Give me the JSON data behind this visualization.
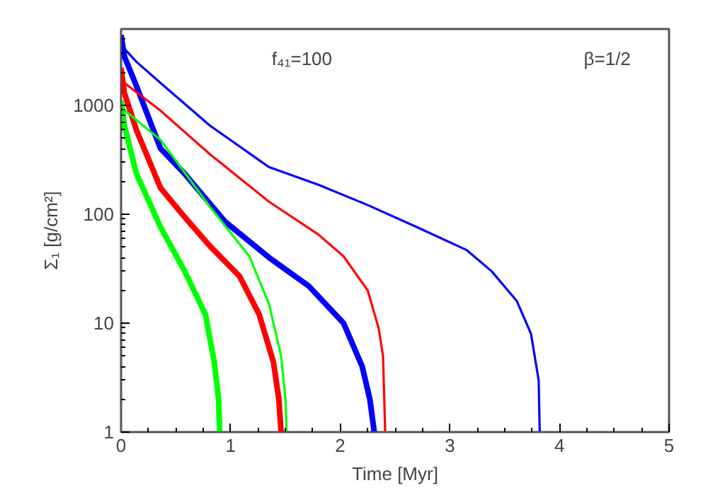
{
  "chart_data": {
    "type": "line",
    "xlabel": "Time [Myr]",
    "ylabel": "Σ₁ [g/cm²]",
    "annotations": [
      "f₄₁=100",
      "β=1/2"
    ],
    "xlim": [
      0,
      5
    ],
    "xticks": [
      0,
      1,
      2,
      3,
      4,
      5
    ],
    "ylim": [
      1,
      5000
    ],
    "yticks": [
      1,
      10,
      100,
      1000
    ],
    "log": true,
    "grid": false,
    "marker": "none",
    "line_style": "solid",
    "series": [
      {
        "color": "#0000ff",
        "x": [
          0,
          0.03,
          0.14,
          0.36,
          0.81,
          1.35,
          1.8,
          2.26,
          2.7,
          3.15,
          3.38,
          3.61,
          3.74,
          3.81,
          3.82
        ],
        "values": [
          4400,
          3300,
          2500,
          1600,
          650,
          270,
          186,
          120,
          76,
          47,
          30,
          16,
          8,
          3,
          1
        ]
      },
      {
        "color": "#0000ff",
        "x": [
          0,
          0.03,
          0.14,
          0.36,
          0.58,
          0.95,
          1.35,
          1.71,
          2.03,
          2.2,
          2.27,
          2.31
        ],
        "values": [
          4400,
          2800,
          1500,
          400,
          235,
          85,
          40,
          22,
          10,
          4,
          2,
          1
        ]
      },
      {
        "color": "#ff0000",
        "x": [
          0,
          0.03,
          0.36,
          0.81,
          1.35,
          1.8,
          2.03,
          2.25,
          2.35,
          2.39,
          2.41
        ],
        "values": [
          2200,
          1600,
          890,
          355,
          130,
          65,
          41,
          20,
          9,
          5,
          1
        ]
      },
      {
        "color": "#ff0000",
        "x": [
          0,
          0.03,
          0.14,
          0.36,
          0.58,
          0.81,
          1.08,
          1.26,
          1.39,
          1.44,
          1.46
        ],
        "values": [
          2200,
          1300,
          590,
          174,
          94,
          51,
          27,
          12,
          4.4,
          2,
          1
        ]
      },
      {
        "color": "#00ff00",
        "x": [
          0,
          0.03,
          0.36,
          0.81,
          1.17,
          1.35,
          1.46,
          1.5,
          1.51
        ],
        "values": [
          1100,
          900,
          480,
          117,
          41,
          15,
          5,
          2,
          1
        ]
      },
      {
        "color": "#00ff00",
        "x": [
          0,
          0.03,
          0.14,
          0.36,
          0.58,
          0.77,
          0.85,
          0.89,
          0.9
        ],
        "values": [
          1100,
          650,
          235,
          76,
          30,
          12,
          4.4,
          2,
          1
        ]
      }
    ]
  }
}
